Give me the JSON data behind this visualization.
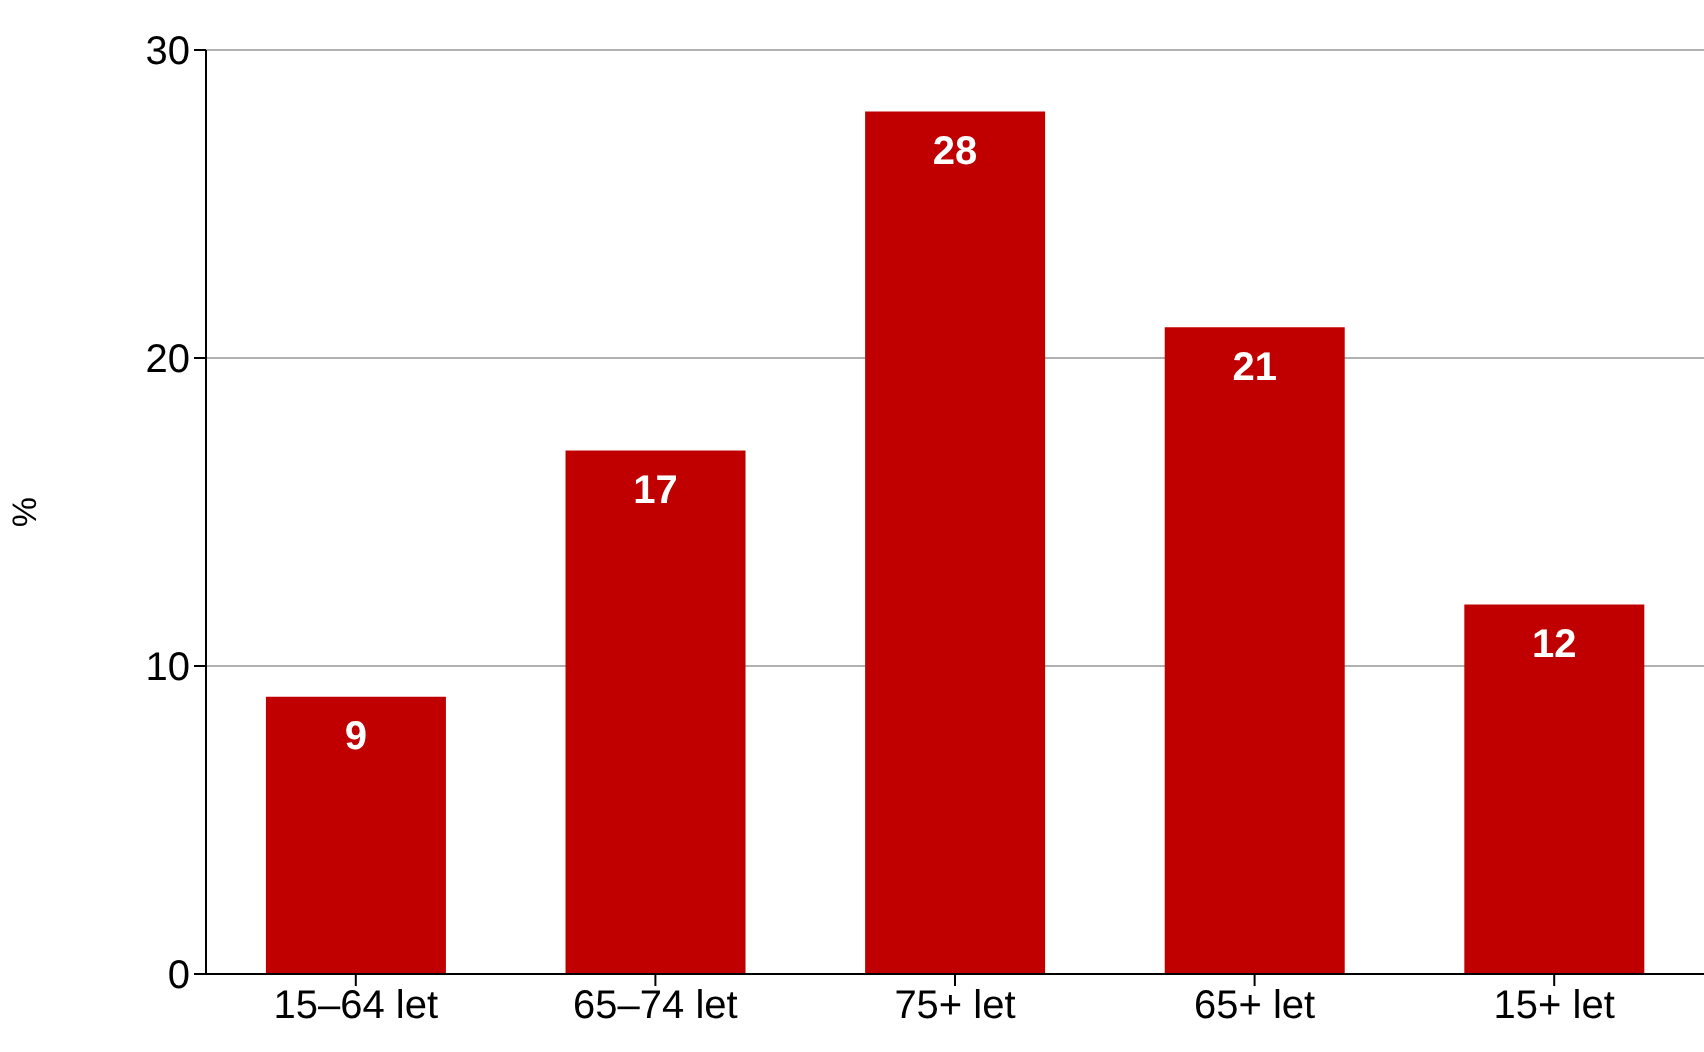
{
  "chart_data": {
    "type": "bar",
    "ylabel": "%",
    "categories": [
      "15–64 let",
      "65–74 let",
      "75+ let",
      "65+ let",
      "15+ let"
    ],
    "values": [
      9,
      17,
      28,
      21,
      12
    ],
    "color": "#c00000",
    "ylim": [
      0,
      30
    ],
    "yticks": [
      0,
      10,
      20,
      30
    ],
    "grid": "y",
    "data_labels": true
  }
}
